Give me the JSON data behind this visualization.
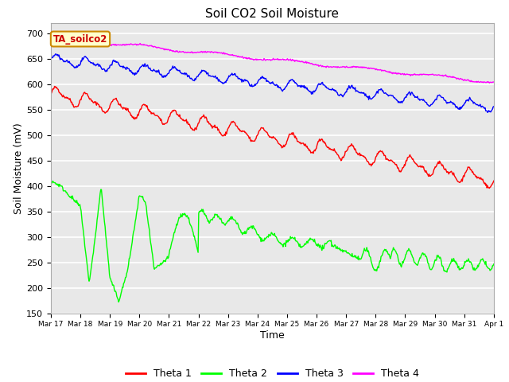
{
  "title": "Soil CO2 Soil Moisture",
  "xlabel": "Time",
  "ylabel": "Soil Moisture (mV)",
  "ylim": [
    150,
    720
  ],
  "yticks": [
    150,
    200,
    250,
    300,
    350,
    400,
    450,
    500,
    550,
    600,
    650,
    700
  ],
  "xtick_labels": [
    "Mar 17",
    "Mar 18",
    "Mar 19",
    "Mar 20",
    "Mar 21",
    "Mar 22",
    "Mar 23",
    "Mar 24",
    "Mar 25",
    "Mar 26",
    "Mar 27",
    "Mar 28",
    "Mar 29",
    "Mar 30",
    "Mar 31",
    "Apr 1"
  ],
  "annotation_text": "TA_soilco2",
  "annotation_color": "#ffffcc",
  "annotation_border": "#cc8800",
  "colors": {
    "theta1": "red",
    "theta2": "lime",
    "theta3": "blue",
    "theta4": "magenta"
  },
  "legend_labels": [
    "Theta 1",
    "Theta 2",
    "Theta 3",
    "Theta 4"
  ],
  "background_color": "#e8e8e8",
  "grid_color": "white"
}
